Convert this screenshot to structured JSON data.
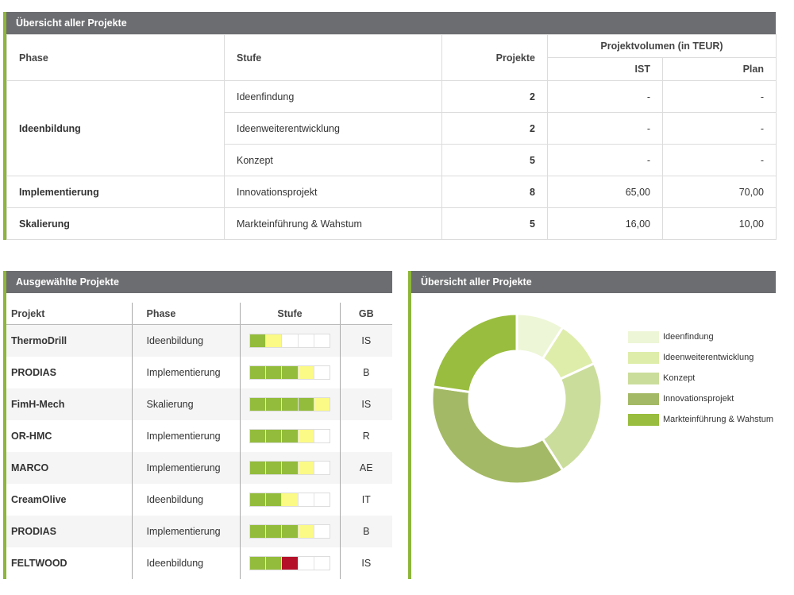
{
  "overview": {
    "title": "Übersicht aller Projekte",
    "headers": {
      "phase": "Phase",
      "stufe": "Stufe",
      "projekte": "Projekte",
      "volumen": "Projektvolumen (in TEUR)",
      "ist": "IST",
      "plan": "Plan"
    },
    "phases": [
      {
        "name": "Ideenbildung",
        "rows": [
          {
            "stufe": "Ideenfindung",
            "projekte": "2",
            "ist": "-",
            "plan": "-"
          },
          {
            "stufe": "Ideenweiterentwicklung",
            "projekte": "2",
            "ist": "-",
            "plan": "-"
          },
          {
            "stufe": "Konzept",
            "projekte": "5",
            "ist": "-",
            "plan": "-"
          }
        ]
      },
      {
        "name": "Implementierung",
        "rows": [
          {
            "stufe": "Innovationsprojekt",
            "projekte": "8",
            "ist": "65,00",
            "plan": "70,00"
          }
        ]
      },
      {
        "name": "Skalierung",
        "rows": [
          {
            "stufe": "Markteinführung & Wahstum",
            "projekte": "5",
            "ist": "16,00",
            "plan": "10,00"
          }
        ]
      }
    ]
  },
  "selected": {
    "title": "Ausgewählte Projekte",
    "headers": {
      "projekt": "Projekt",
      "phase": "Phase",
      "stufe": "Stufe",
      "gb": "GB"
    },
    "rows": [
      {
        "projekt": "ThermoDrill",
        "phase": "Ideenbildung",
        "gb": "IS",
        "stufe": [
          "green",
          "yellow",
          "empty",
          "empty",
          "empty"
        ]
      },
      {
        "projekt": "PRODIAS",
        "phase": "Implementierung",
        "gb": "B",
        "stufe": [
          "green",
          "green",
          "green",
          "yellow",
          "empty"
        ]
      },
      {
        "projekt": "FimH-Mech",
        "phase": "Skalierung",
        "gb": "IS",
        "stufe": [
          "green",
          "green",
          "green",
          "green",
          "yellow"
        ]
      },
      {
        "projekt": "OR-HMC",
        "phase": "Implementierung",
        "gb": "R",
        "stufe": [
          "green",
          "green",
          "green",
          "yellow",
          "empty"
        ]
      },
      {
        "projekt": "MARCO",
        "phase": "Implementierung",
        "gb": "AE",
        "stufe": [
          "green",
          "green",
          "green",
          "yellow",
          "empty"
        ]
      },
      {
        "projekt": "CreamOlive",
        "phase": "Ideenbildung",
        "gb": "IT",
        "stufe": [
          "green",
          "green",
          "yellow",
          "empty",
          "empty"
        ]
      },
      {
        "projekt": "PRODIAS",
        "phase": "Implementierung",
        "gb": "B",
        "stufe": [
          "green",
          "green",
          "green",
          "yellow",
          "empty"
        ]
      },
      {
        "projekt": "FELTWOOD",
        "phase": "Ideenbildung",
        "gb": "IS",
        "stufe": [
          "green",
          "green",
          "red",
          "empty",
          "empty"
        ]
      }
    ],
    "colors": {
      "green": "#93bc3c",
      "yellow": "#fbfa86",
      "red": "#b5102a",
      "empty": "#ffffff"
    }
  },
  "donut": {
    "title": "Übersicht aller Projekte",
    "chart_data": {
      "type": "pie",
      "categories": [
        "Ideenfindung",
        "Ideenweiterentwicklung",
        "Konzept",
        "Innovationsprojekt",
        "Markteinführung & Wahstum"
      ],
      "values": [
        2,
        2,
        5,
        8,
        5
      ],
      "colors": [
        "#edf6d6",
        "#deedaa",
        "#cbdd9b",
        "#a4b965",
        "#99bd3e"
      ]
    }
  },
  "accent_color": "#8db63a"
}
